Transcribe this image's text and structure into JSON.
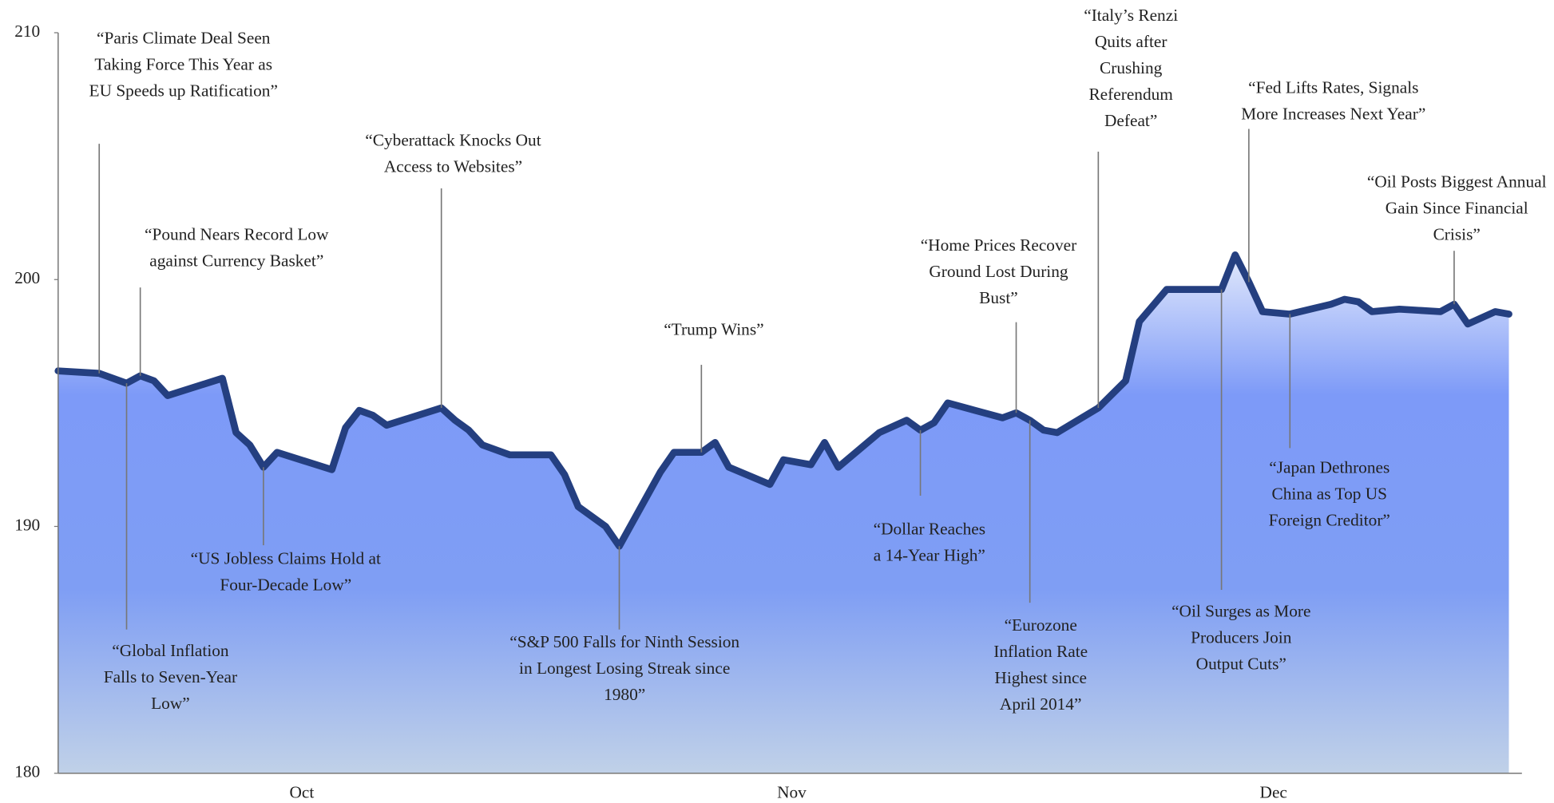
{
  "chart_data": {
    "type": "area",
    "x": [
      0,
      3,
      5,
      6,
      7,
      8,
      12,
      13,
      14,
      15,
      16,
      20,
      21,
      22,
      23,
      24,
      28,
      29,
      30,
      31,
      33,
      36,
      37,
      38,
      40,
      41,
      42,
      44,
      45,
      47,
      48,
      49,
      52,
      53,
      55,
      56,
      57,
      60,
      62,
      63,
      64,
      65,
      67,
      69,
      70,
      71,
      72,
      73,
      76,
      78,
      79,
      81,
      85,
      86,
      87,
      88,
      90,
      93,
      94,
      95,
      96,
      98,
      101,
      102,
      103,
      105,
      106
    ],
    "values": [
      196.3,
      196.2,
      195.8,
      196.1,
      195.9,
      195.3,
      196.0,
      193.8,
      193.3,
      192.4,
      193.0,
      192.3,
      194.0,
      194.7,
      194.5,
      194.1,
      194.8,
      194.3,
      193.9,
      193.3,
      192.9,
      192.9,
      192.1,
      190.8,
      190.0,
      189.2,
      190.2,
      192.2,
      193.0,
      193.0,
      193.4,
      192.4,
      191.7,
      192.7,
      192.5,
      193.4,
      192.4,
      193.8,
      194.3,
      193.9,
      194.2,
      195.0,
      194.7,
      194.4,
      194.6,
      194.3,
      193.9,
      193.8,
      194.8,
      195.9,
      198.3,
      199.6,
      199.6,
      201.0,
      199.9,
      198.7,
      198.6,
      199.0,
      199.2,
      199.1,
      198.7,
      198.8,
      198.7,
      199.0,
      198.2,
      198.7,
      198.6
    ],
    "color": "#243f80",
    "xlim": [
      0,
      106
    ],
    "xticks": [
      {
        "value": 17.8,
        "label": "Oct"
      },
      {
        "value": 53.6,
        "label": "Nov"
      },
      {
        "value": 88.8,
        "label": "Dec"
      }
    ],
    "ylim": [
      180,
      210
    ],
    "yticks": [
      180,
      190,
      200,
      210
    ],
    "annotations": [
      {
        "x": 3,
        "lines": [
          "“Paris Climate Deal Seen",
          "Taking Force This Year as",
          "EU Speeds up Ratification”"
        ]
      },
      {
        "x": 6,
        "lines": [
          "“Pound Nears Record Low",
          "against Currency Basket”"
        ]
      },
      {
        "x": 5,
        "lines": [
          "“Global Inflation",
          "Falls to Seven-Year",
          "Low”"
        ]
      },
      {
        "x": 15,
        "lines": [
          "“US Jobless Claims Hold at",
          "Four-Decade Low”"
        ]
      },
      {
        "x": 28,
        "lines": [
          "“Cyberattack Knocks Out",
          "Access to Websites”"
        ]
      },
      {
        "x": 41,
        "lines": [
          "“S&P 500 Falls for Ninth Session",
          "in Longest Losing Streak since",
          "1980”"
        ]
      },
      {
        "x": 47,
        "lines": [
          "“Trump Wins”"
        ]
      },
      {
        "x": 63,
        "lines": [
          "“Dollar Reaches",
          "a 14-Year High”"
        ]
      },
      {
        "x": 70,
        "lines": [
          "“Home Prices Recover",
          "Ground Lost During",
          "Bust”"
        ]
      },
      {
        "x": 71,
        "lines": [
          "“Eurozone",
          "Inflation Rate",
          "Highest since",
          "April 2014”"
        ]
      },
      {
        "x": 76,
        "lines": [
          "“Italy’s Renzi",
          "Quits after",
          "Crushing",
          "Referendum",
          "Defeat”"
        ]
      },
      {
        "x": 85,
        "lines": [
          "“Oil Surges as More",
          "Producers Join",
          "Output Cuts”"
        ]
      },
      {
        "x": 87,
        "lines": [
          "“Fed Lifts Rates, Signals",
          "More Increases Next Year”"
        ]
      },
      {
        "x": 90,
        "lines": [
          "“Japan Dethrones",
          "China as Top US",
          "Foreign Creditor”"
        ]
      },
      {
        "x": 102,
        "lines": [
          "“Oil Posts Biggest Annual",
          "Gain Since Financial",
          "Crisis”"
        ]
      }
    ]
  }
}
